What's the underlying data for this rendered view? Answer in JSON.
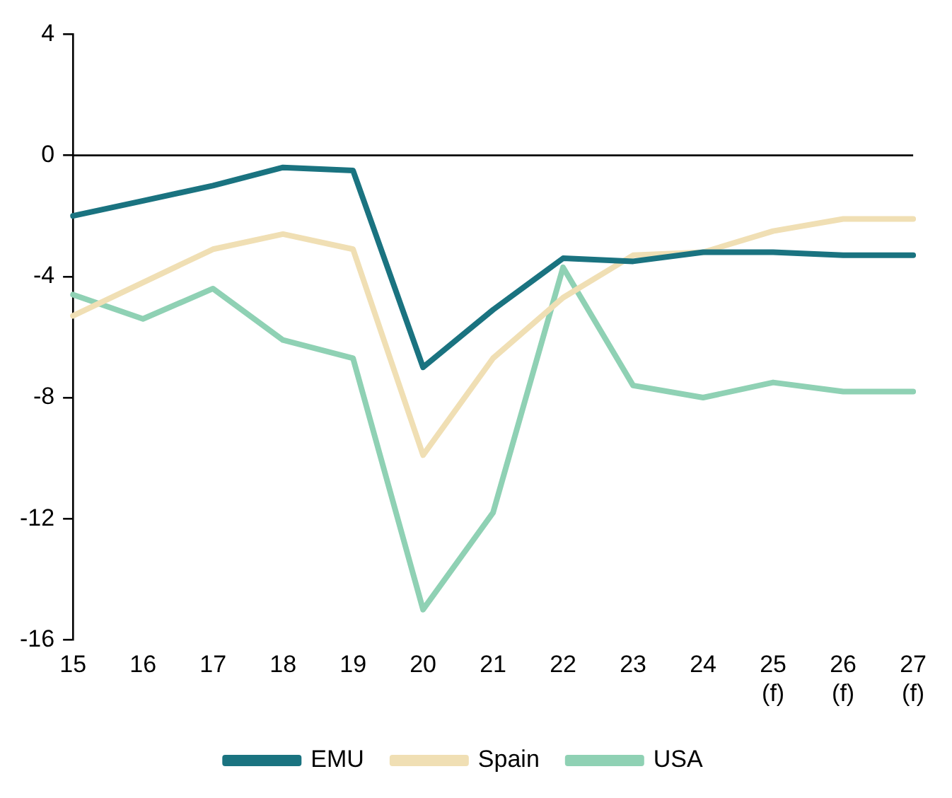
{
  "chart_data": {
    "type": "line",
    "categories": [
      "15",
      "16",
      "17",
      "18",
      "19",
      "20",
      "21",
      "22",
      "23",
      "24",
      "25 (f)",
      "26 (f)",
      "27 (f)"
    ],
    "series": [
      {
        "name": "EMU",
        "color": "#1a7380",
        "values": [
          -2.0,
          -1.5,
          -1.0,
          -0.4,
          -0.5,
          -7.0,
          -5.1,
          -3.4,
          -3.5,
          -3.2,
          -3.2,
          -3.3,
          -3.3
        ]
      },
      {
        "name": "Spain",
        "color": "#f0dfb4",
        "values": [
          -5.3,
          -4.2,
          -3.1,
          -2.6,
          -3.1,
          -9.9,
          -6.7,
          -4.7,
          -3.3,
          -3.2,
          -2.5,
          -2.1,
          -2.1
        ]
      },
      {
        "name": "USA",
        "color": "#8fd1b4",
        "values": [
          -4.6,
          -5.4,
          -4.4,
          -6.1,
          -6.7,
          -15.0,
          -11.8,
          -3.7,
          -7.6,
          -8.0,
          -7.5,
          -7.8,
          -7.8
        ]
      }
    ],
    "ref_lines": [
      {
        "axis": "y",
        "value": 0,
        "color": "#000000",
        "line_style": "solid"
      }
    ],
    "ylim": [
      -16,
      4
    ],
    "yticks": [
      -16,
      -12,
      -8,
      -4,
      0,
      4
    ],
    "grid": false,
    "legend": "bottom",
    "marker": "none",
    "line_style": "solid"
  }
}
